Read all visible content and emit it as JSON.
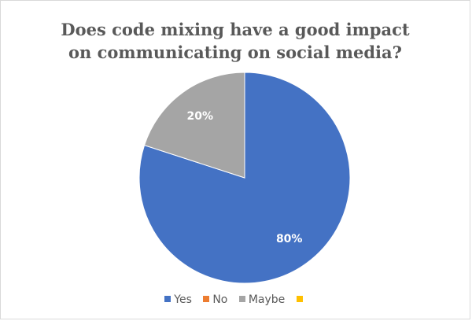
{
  "chart_data": {
    "type": "pie",
    "title": [
      "Does code mixing have a good impact",
      "on communicating on social media?"
    ],
    "categories": [
      "Yes",
      "No",
      "Maybe",
      ""
    ],
    "values": [
      80,
      0,
      20,
      0
    ],
    "labels": [
      "80%",
      "",
      "20%",
      ""
    ],
    "colors": [
      "#4472c4",
      "#ed7d31",
      "#a5a5a5",
      "#ffc000"
    ],
    "legend_position": "bottom",
    "start_angle_deg": 0,
    "direction": "clockwise"
  }
}
